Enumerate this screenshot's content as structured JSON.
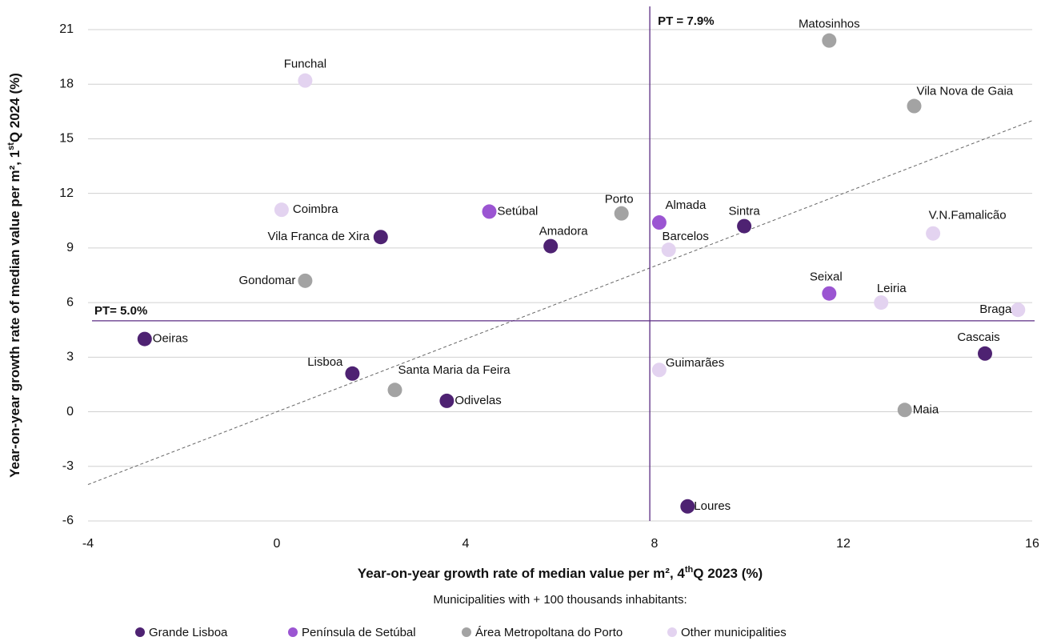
{
  "chart_data": {
    "type": "scatter",
    "x_label": [
      "Year-on-year growth rate of median value per m², 4",
      "th",
      "Q 2023 (%)"
    ],
    "y_label": [
      "Year-on-year growth rate of median value per m², 1",
      "st",
      "Q 2024 (%)"
    ],
    "legend_title": "Municipalities with + 100 thousands inhabitants:",
    "legend": "bottom",
    "xlim": [
      -4,
      16
    ],
    "xticks": [
      -4,
      0,
      4,
      8,
      12,
      16
    ],
    "ylim": [
      -6,
      21
    ],
    "yticks": [
      -6,
      -3,
      0,
      3,
      6,
      9,
      12,
      15,
      18,
      21
    ],
    "grid": true,
    "reference_lines": [
      {
        "axis": "x",
        "value": 7.9,
        "label": "PT = 7.9%"
      },
      {
        "axis": "y",
        "value": 5,
        "label": "PT= 5.0%"
      }
    ],
    "series": [
      {
        "name": "Grande Lisboa",
        "color": "#4e2272",
        "labels": [
          "Vila Franca de Xira",
          "Amadora",
          "Sintra",
          "Oeiras",
          "Lisboa",
          "Odivelas",
          "Loures",
          "Cascais"
        ],
        "x": [
          2.2,
          5.8,
          9.9,
          -2.8,
          1.6,
          3.6,
          8.7,
          15.0
        ],
        "values": [
          9.6,
          9.1,
          10.2,
          4.0,
          2.1,
          0.6,
          -5.2,
          3.2
        ]
      },
      {
        "name": "Península de Setúbal",
        "color": "#9b55d2",
        "labels": [
          "Setúbal",
          "Almada",
          "Seixal"
        ],
        "x": [
          4.5,
          8.1,
          11.7
        ],
        "values": [
          11.0,
          10.4,
          6.5
        ]
      },
      {
        "name": "Área Metropoltana do Porto",
        "color": "#a3a3a3",
        "labels": [
          "Matosinhos",
          "Vila Nova de Gaia",
          "Porto",
          "Gondomar",
          "Santa Maria da Feira",
          "Maia"
        ],
        "x": [
          11.7,
          13.5,
          7.3,
          0.6,
          2.5,
          13.3
        ],
        "values": [
          20.4,
          16.8,
          10.9,
          7.2,
          1.2,
          0.1
        ]
      },
      {
        "name": "Other municipalities",
        "color": "#e3d3f0",
        "labels": [
          "Funchal",
          "Coimbra",
          "Barcelos",
          "V.N.Famalicão",
          "Leiria",
          "Braga",
          "Guimarães"
        ],
        "x": [
          0.6,
          0.1,
          8.3,
          13.9,
          12.8,
          15.7,
          8.1
        ],
        "values": [
          18.2,
          11.1,
          8.9,
          9.8,
          6.0,
          5.6,
          2.3
        ]
      }
    ]
  }
}
